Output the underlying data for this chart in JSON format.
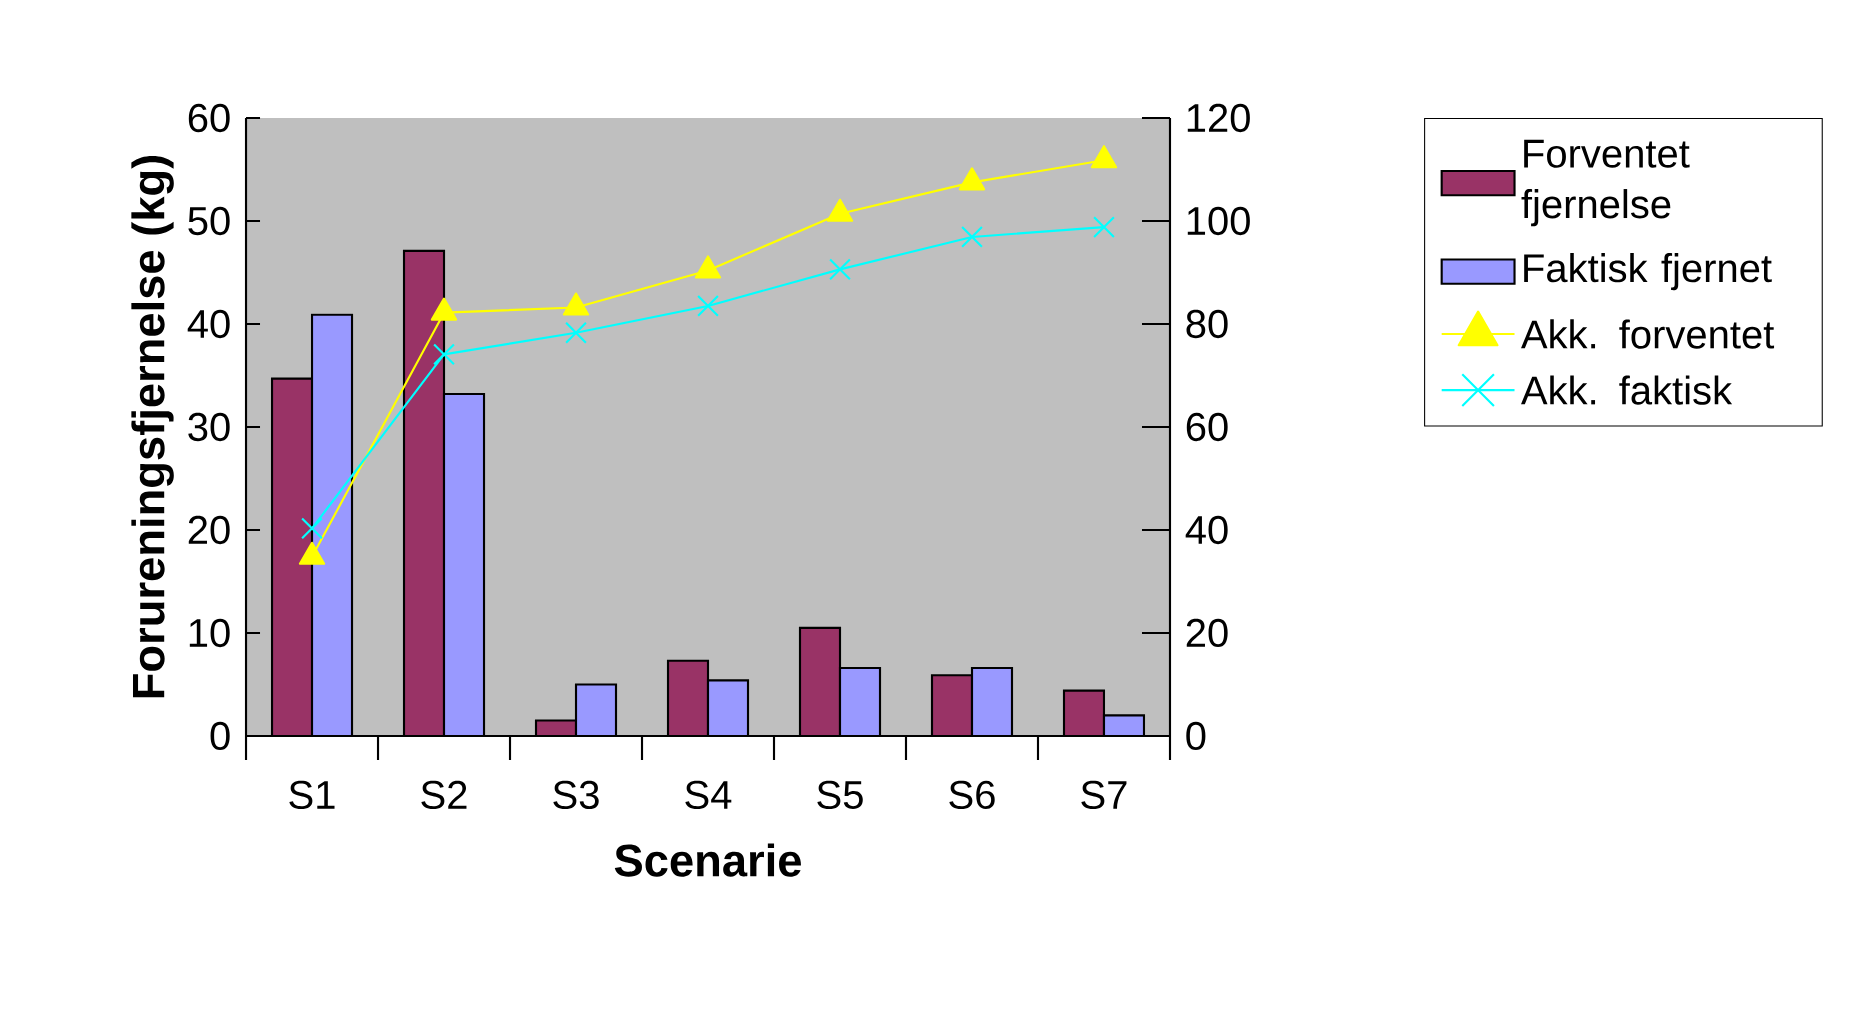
{
  "chart_data": {
    "type": "bar",
    "categories": [
      "S1",
      "S2",
      "S3",
      "S4",
      "S5",
      "S6",
      "S7"
    ],
    "xlabel": "Scenarie",
    "ylabel": "Forureningsfjernelse (kg)",
    "ylim": [
      0,
      60
    ],
    "yticks": [
      0,
      10,
      20,
      30,
      40,
      50,
      60
    ],
    "y2lim": [
      0,
      120
    ],
    "y2ticks": [
      0,
      20,
      40,
      60,
      80,
      100,
      120
    ],
    "legend": "right",
    "series": [
      {
        "name": "Forventet fjernelse",
        "color": "#993366",
        "values": [
          34.7,
          47.1,
          1.5,
          7.3,
          10.5,
          5.9,
          4.4
        ]
      },
      {
        "name": "Faktisk fjernet",
        "color": "#9999ff",
        "values": [
          40.9,
          33.2,
          5.0,
          5.4,
          6.6,
          6.6,
          2.0
        ]
      },
      {
        "name": "Akk. forventet",
        "type": "line",
        "axis": "y2",
        "marker": "triangle",
        "color": "#ffff00",
        "values": [
          34.8,
          82.2,
          83.2,
          90.4,
          101.4,
          107.5,
          111.8
        ]
      },
      {
        "name": "Akk. faktisk",
        "type": "line",
        "axis": "y2",
        "marker": "cross",
        "color": "#00ffff",
        "values": [
          40.3,
          74.1,
          78.3,
          83.5,
          90.6,
          96.9,
          98.8
        ]
      }
    ]
  }
}
